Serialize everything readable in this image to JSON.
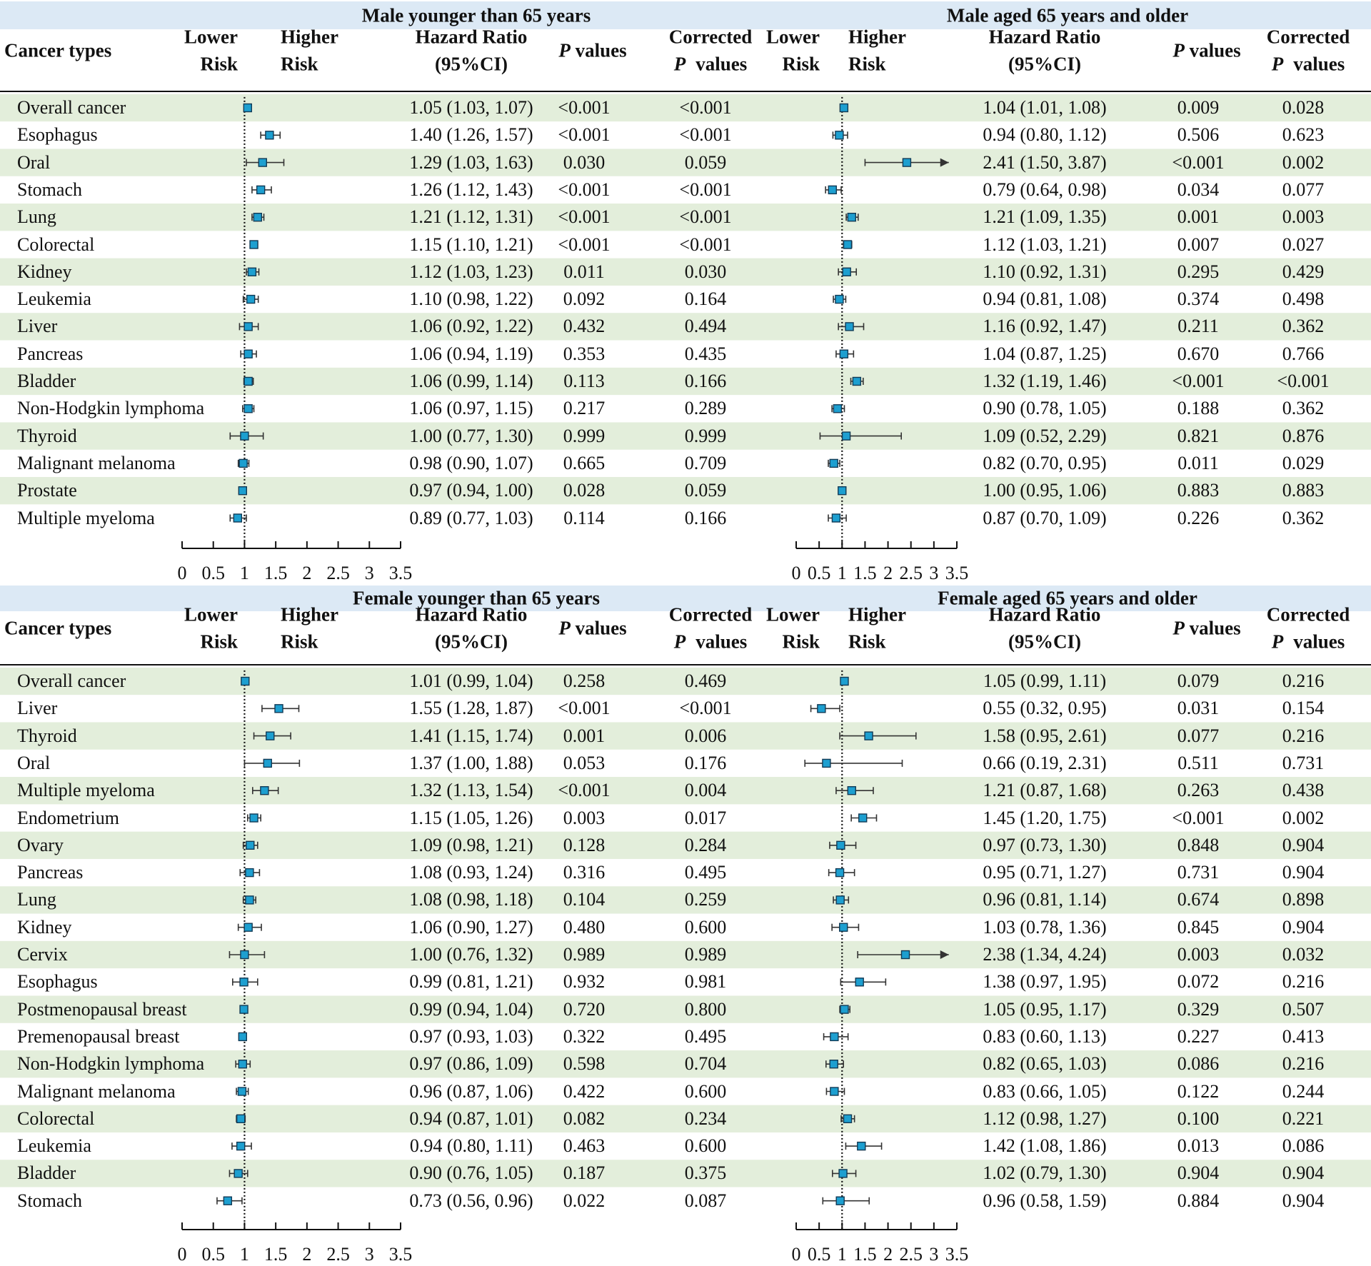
{
  "palette": {
    "title_band": "#dce9f5",
    "row_band": "#e3eedb",
    "marker": "#1d9fd0",
    "marker_edge": "#123a55"
  },
  "panels": [
    {
      "title": "Male younger than 65 years",
      "headers": {
        "cancer": "Cancer types",
        "lower_1": "Lower",
        "lower_2": "Risk",
        "higher_1": "Higher",
        "higher_2": "Risk",
        "hr_1": "Hazard Ratio",
        "hr_2": "(95%CI)",
        "p_1": "P",
        "p_2": " values",
        "cp_1": "Corrected",
        "cp_2a": "P",
        "cp_2b": "values"
      },
      "axis_ticks": [
        "0",
        "0.5",
        "1",
        "1.5",
        "2",
        "2.5",
        "3",
        "3.5"
      ]
    },
    {
      "title": "Male aged 65 years and older",
      "headers": {
        "cancer": "",
        "lower_1": "Lower",
        "lower_2": "Risk",
        "higher_1": "Higher",
        "higher_2": "Risk",
        "hr_1": "Hazard Ratio",
        "hr_2": "(95%CI)",
        "p_1": "P",
        "p_2": " values",
        "cp_1": "Corrected",
        "cp_2a": "P",
        "cp_2b": "values"
      },
      "axis_ticks": [
        "0",
        "0.5",
        "1",
        "1.5",
        "2",
        "2.5",
        "3",
        "3.5"
      ]
    },
    {
      "title": "Female younger than 65 years",
      "headers": {
        "cancer": "Cancer types",
        "lower_1": "Lower",
        "lower_2": "Risk",
        "higher_1": "Higher",
        "higher_2": "Risk",
        "hr_1": "Hazard Ratio",
        "hr_2": "(95%CI)",
        "p_1": "P",
        "p_2": " values",
        "cp_1": "Corrected",
        "cp_2a": "P",
        "cp_2b": "values"
      },
      "axis_ticks": [
        "0",
        "0.5",
        "1",
        "1.5",
        "2",
        "2.5",
        "3",
        "3.5"
      ]
    },
    {
      "title": "Female aged 65 years and older",
      "headers": {
        "cancer": "",
        "lower_1": "Lower",
        "lower_2": "Risk",
        "higher_1": "Higher",
        "higher_2": "Risk",
        "hr_1": "Hazard Ratio",
        "hr_2": "(95%CI)",
        "p_1": "P",
        "p_2": " values",
        "cp_1": "Corrected",
        "cp_2a": "P",
        "cp_2b": "values"
      },
      "axis_ticks": [
        "0",
        "0.5",
        "1",
        "1.5",
        "2",
        "2.5",
        "3",
        "3.5"
      ]
    }
  ],
  "chart_data": [
    {
      "type": "forest",
      "title": "Male younger than 65 years",
      "xlim": [
        0,
        3.5
      ],
      "reference_line": 1,
      "rows": [
        {
          "cancer": "Overall cancer",
          "hr": 1.05,
          "lo": 1.03,
          "hi": 1.07,
          "hr_text": "1.05 (1.03, 1.07)",
          "p": "<0.001",
          "p_corrected": "<0.001"
        },
        {
          "cancer": "Esophagus",
          "hr": 1.4,
          "lo": 1.26,
          "hi": 1.57,
          "hr_text": "1.40 (1.26, 1.57)",
          "p": "<0.001",
          "p_corrected": "<0.001"
        },
        {
          "cancer": "Oral",
          "hr": 1.29,
          "lo": 1.03,
          "hi": 1.63,
          "hr_text": "1.29 (1.03, 1.63)",
          "p": "0.030",
          "p_corrected": "0.059"
        },
        {
          "cancer": "Stomach",
          "hr": 1.26,
          "lo": 1.12,
          "hi": 1.43,
          "hr_text": "1.26 (1.12, 1.43)",
          "p": "<0.001",
          "p_corrected": "<0.001"
        },
        {
          "cancer": "Lung",
          "hr": 1.21,
          "lo": 1.12,
          "hi": 1.31,
          "hr_text": "1.21 (1.12, 1.31)",
          "p": "<0.001",
          "p_corrected": "<0.001"
        },
        {
          "cancer": "Colorectal",
          "hr": 1.15,
          "lo": 1.1,
          "hi": 1.21,
          "hr_text": "1.15 (1.10, 1.21)",
          "p": "<0.001",
          "p_corrected": "<0.001"
        },
        {
          "cancer": "Kidney",
          "hr": 1.12,
          "lo": 1.03,
          "hi": 1.23,
          "hr_text": "1.12 (1.03, 1.23)",
          "p": "0.011",
          "p_corrected": "0.030"
        },
        {
          "cancer": "Leukemia",
          "hr": 1.1,
          "lo": 0.98,
          "hi": 1.22,
          "hr_text": "1.10 (0.98, 1.22)",
          "p": "0.092",
          "p_corrected": "0.164"
        },
        {
          "cancer": "Liver",
          "hr": 1.06,
          "lo": 0.92,
          "hi": 1.22,
          "hr_text": "1.06 (0.92, 1.22)",
          "p": "0.432",
          "p_corrected": "0.494"
        },
        {
          "cancer": "Pancreas",
          "hr": 1.06,
          "lo": 0.94,
          "hi": 1.19,
          "hr_text": "1.06 (0.94, 1.19)",
          "p": "0.353",
          "p_corrected": "0.435"
        },
        {
          "cancer": "Bladder",
          "hr": 1.06,
          "lo": 0.99,
          "hi": 1.14,
          "hr_text": "1.06 (0.99, 1.14)",
          "p": "0.113",
          "p_corrected": "0.166"
        },
        {
          "cancer": "Non-Hodgkin lymphoma",
          "hr": 1.06,
          "lo": 0.97,
          "hi": 1.15,
          "hr_text": "1.06 (0.97, 1.15)",
          "p": "0.217",
          "p_corrected": "0.289"
        },
        {
          "cancer": "Thyroid",
          "hr": 1.0,
          "lo": 0.77,
          "hi": 1.3,
          "hr_text": "1.00 (0.77, 1.30)",
          "p": "0.999",
          "p_corrected": "0.999"
        },
        {
          "cancer": "Malignant melanoma",
          "hr": 0.98,
          "lo": 0.9,
          "hi": 1.07,
          "hr_text": "0.98 (0.90, 1.07)",
          "p": "0.665",
          "p_corrected": "0.709"
        },
        {
          "cancer": "Prostate",
          "hr": 0.97,
          "lo": 0.94,
          "hi": 1.0,
          "hr_text": "0.97 (0.94, 1.00)",
          "p": "0.028",
          "p_corrected": "0.059"
        },
        {
          "cancer": "Multiple myeloma",
          "hr": 0.89,
          "lo": 0.77,
          "hi": 1.03,
          "hr_text": "0.89 (0.77, 1.03)",
          "p": "0.114",
          "p_corrected": "0.166"
        }
      ]
    },
    {
      "type": "forest",
      "title": "Male aged 65 years and older",
      "xlim": [
        0,
        3.5
      ],
      "reference_line": 1,
      "rows": [
        {
          "cancer": "Overall cancer",
          "hr": 1.04,
          "lo": 1.01,
          "hi": 1.08,
          "hr_text": "1.04 (1.01, 1.08)",
          "p": "0.009",
          "p_corrected": "0.028"
        },
        {
          "cancer": "Esophagus",
          "hr": 0.94,
          "lo": 0.8,
          "hi": 1.12,
          "hr_text": "0.94 (0.80, 1.12)",
          "p": "0.506",
          "p_corrected": "0.623"
        },
        {
          "cancer": "Oral",
          "hr": 2.41,
          "lo": 1.5,
          "hi": 3.87,
          "hr_text": "2.41 (1.50, 3.87)",
          "p": "<0.001",
          "p_corrected": "0.002"
        },
        {
          "cancer": "Stomach",
          "hr": 0.79,
          "lo": 0.64,
          "hi": 0.98,
          "hr_text": "0.79 (0.64, 0.98)",
          "p": "0.034",
          "p_corrected": "0.077"
        },
        {
          "cancer": "Lung",
          "hr": 1.21,
          "lo": 1.09,
          "hi": 1.35,
          "hr_text": "1.21 (1.09, 1.35)",
          "p": "0.001",
          "p_corrected": "0.003"
        },
        {
          "cancer": "Colorectal",
          "hr": 1.12,
          "lo": 1.03,
          "hi": 1.21,
          "hr_text": "1.12 (1.03, 1.21)",
          "p": "0.007",
          "p_corrected": "0.027"
        },
        {
          "cancer": "Kidney",
          "hr": 1.1,
          "lo": 0.92,
          "hi": 1.31,
          "hr_text": "1.10 (0.92, 1.31)",
          "p": "0.295",
          "p_corrected": "0.429"
        },
        {
          "cancer": "Leukemia",
          "hr": 0.94,
          "lo": 0.81,
          "hi": 1.08,
          "hr_text": "0.94 (0.81, 1.08)",
          "p": "0.374",
          "p_corrected": "0.498"
        },
        {
          "cancer": "Liver",
          "hr": 1.16,
          "lo": 0.92,
          "hi": 1.47,
          "hr_text": "1.16 (0.92, 1.47)",
          "p": "0.211",
          "p_corrected": "0.362"
        },
        {
          "cancer": "Pancreas",
          "hr": 1.04,
          "lo": 0.87,
          "hi": 1.25,
          "hr_text": "1.04 (0.87, 1.25)",
          "p": "0.670",
          "p_corrected": "0.766"
        },
        {
          "cancer": "Bladder",
          "hr": 1.32,
          "lo": 1.19,
          "hi": 1.46,
          "hr_text": "1.32 (1.19, 1.46)",
          "p": "<0.001",
          "p_corrected": "<0.001"
        },
        {
          "cancer": "Non-Hodgkin lymphoma",
          "hr": 0.9,
          "lo": 0.78,
          "hi": 1.05,
          "hr_text": "0.90 (0.78, 1.05)",
          "p": "0.188",
          "p_corrected": "0.362"
        },
        {
          "cancer": "Thyroid",
          "hr": 1.09,
          "lo": 0.52,
          "hi": 2.29,
          "hr_text": "1.09 (0.52, 2.29)",
          "p": "0.821",
          "p_corrected": "0.876"
        },
        {
          "cancer": "Malignant melanoma",
          "hr": 0.82,
          "lo": 0.7,
          "hi": 0.95,
          "hr_text": "0.82 (0.70, 0.95)",
          "p": "0.011",
          "p_corrected": "0.029"
        },
        {
          "cancer": "Prostate",
          "hr": 1.0,
          "lo": 0.95,
          "hi": 1.06,
          "hr_text": "1.00 (0.95, 1.06)",
          "p": "0.883",
          "p_corrected": "0.883"
        },
        {
          "cancer": "Multiple myeloma",
          "hr": 0.87,
          "lo": 0.7,
          "hi": 1.09,
          "hr_text": "0.87 (0.70, 1.09)",
          "p": "0.226",
          "p_corrected": "0.362"
        }
      ]
    },
    {
      "type": "forest",
      "title": "Female younger than 65 years",
      "xlim": [
        0,
        3.5
      ],
      "reference_line": 1,
      "rows": [
        {
          "cancer": "Overall cancer",
          "hr": 1.01,
          "lo": 0.99,
          "hi": 1.04,
          "hr_text": "1.01 (0.99, 1.04)",
          "p": "0.258",
          "p_corrected": "0.469"
        },
        {
          "cancer": "Liver",
          "hr": 1.55,
          "lo": 1.28,
          "hi": 1.87,
          "hr_text": "1.55 (1.28, 1.87)",
          "p": "<0.001",
          "p_corrected": "<0.001"
        },
        {
          "cancer": "Thyroid",
          "hr": 1.41,
          "lo": 1.15,
          "hi": 1.74,
          "hr_text": "1.41 (1.15, 1.74)",
          "p": "0.001",
          "p_corrected": "0.006"
        },
        {
          "cancer": "Oral",
          "hr": 1.37,
          "lo": 1.0,
          "hi": 1.88,
          "hr_text": "1.37 (1.00, 1.88)",
          "p": "0.053",
          "p_corrected": "0.176"
        },
        {
          "cancer": "Multiple myeloma",
          "hr": 1.32,
          "lo": 1.13,
          "hi": 1.54,
          "hr_text": "1.32 (1.13, 1.54)",
          "p": "<0.001",
          "p_corrected": "0.004"
        },
        {
          "cancer": "Endometrium",
          "hr": 1.15,
          "lo": 1.05,
          "hi": 1.26,
          "hr_text": "1.15 (1.05, 1.26)",
          "p": "0.003",
          "p_corrected": "0.017"
        },
        {
          "cancer": "Ovary",
          "hr": 1.09,
          "lo": 0.98,
          "hi": 1.21,
          "hr_text": "1.09 (0.98, 1.21)",
          "p": "0.128",
          "p_corrected": "0.284"
        },
        {
          "cancer": "Pancreas",
          "hr": 1.08,
          "lo": 0.93,
          "hi": 1.24,
          "hr_text": "1.08 (0.93, 1.24)",
          "p": "0.316",
          "p_corrected": "0.495"
        },
        {
          "cancer": "Lung",
          "hr": 1.08,
          "lo": 0.98,
          "hi": 1.18,
          "hr_text": "1.08 (0.98, 1.18)",
          "p": "0.104",
          "p_corrected": "0.259"
        },
        {
          "cancer": "Kidney",
          "hr": 1.06,
          "lo": 0.9,
          "hi": 1.27,
          "hr_text": "1.06 (0.90, 1.27)",
          "p": "0.480",
          "p_corrected": "0.600"
        },
        {
          "cancer": "Cervix",
          "hr": 1.0,
          "lo": 0.76,
          "hi": 1.32,
          "hr_text": "1.00 (0.76, 1.32)",
          "p": "0.989",
          "p_corrected": "0.989"
        },
        {
          "cancer": "Esophagus",
          "hr": 0.99,
          "lo": 0.81,
          "hi": 1.21,
          "hr_text": "0.99 (0.81, 1.21)",
          "p": "0.932",
          "p_corrected": "0.981"
        },
        {
          "cancer": "Postmenopausal breast",
          "hr": 0.99,
          "lo": 0.94,
          "hi": 1.04,
          "hr_text": "0.99 (0.94, 1.04)",
          "p": "0.720",
          "p_corrected": "0.800"
        },
        {
          "cancer": "Premenopausal breast",
          "hr": 0.97,
          "lo": 0.93,
          "hi": 1.03,
          "hr_text": "0.97 (0.93, 1.03)",
          "p": "0.322",
          "p_corrected": "0.495"
        },
        {
          "cancer": "Non-Hodgkin lymphoma",
          "hr": 0.97,
          "lo": 0.86,
          "hi": 1.09,
          "hr_text": "0.97 (0.86, 1.09)",
          "p": "0.598",
          "p_corrected": "0.704"
        },
        {
          "cancer": "Malignant melanoma",
          "hr": 0.96,
          "lo": 0.87,
          "hi": 1.06,
          "hr_text": "0.96 (0.87, 1.06)",
          "p": "0.422",
          "p_corrected": "0.600"
        },
        {
          "cancer": "Colorectal",
          "hr": 0.94,
          "lo": 0.87,
          "hi": 1.01,
          "hr_text": "0.94 (0.87, 1.01)",
          "p": "0.082",
          "p_corrected": "0.234"
        },
        {
          "cancer": "Leukemia",
          "hr": 0.94,
          "lo": 0.8,
          "hi": 1.11,
          "hr_text": "0.94 (0.80, 1.11)",
          "p": "0.463",
          "p_corrected": "0.600"
        },
        {
          "cancer": "Bladder",
          "hr": 0.9,
          "lo": 0.76,
          "hi": 1.05,
          "hr_text": "0.90 (0.76, 1.05)",
          "p": "0.187",
          "p_corrected": "0.375"
        },
        {
          "cancer": "Stomach",
          "hr": 0.73,
          "lo": 0.56,
          "hi": 0.96,
          "hr_text": "0.73 (0.56, 0.96)",
          "p": "0.022",
          "p_corrected": "0.087"
        }
      ]
    },
    {
      "type": "forest",
      "title": "Female aged 65 years and older",
      "xlim": [
        0,
        3.5
      ],
      "reference_line": 1,
      "rows": [
        {
          "cancer": "Overall cancer",
          "hr": 1.05,
          "lo": 0.99,
          "hi": 1.11,
          "hr_text": "1.05 (0.99, 1.11)",
          "p": "0.079",
          "p_corrected": "0.216"
        },
        {
          "cancer": "Liver",
          "hr": 0.55,
          "lo": 0.32,
          "hi": 0.95,
          "hr_text": "0.55 (0.32, 0.95)",
          "p": "0.031",
          "p_corrected": "0.154"
        },
        {
          "cancer": "Thyroid",
          "hr": 1.58,
          "lo": 0.95,
          "hi": 2.61,
          "hr_text": "1.58 (0.95, 2.61)",
          "p": "0.077",
          "p_corrected": "0.216"
        },
        {
          "cancer": "Oral",
          "hr": 0.66,
          "lo": 0.19,
          "hi": 2.31,
          "hr_text": "0.66 (0.19, 2.31)",
          "p": "0.511",
          "p_corrected": "0.731"
        },
        {
          "cancer": "Multiple myeloma",
          "hr": 1.21,
          "lo": 0.87,
          "hi": 1.68,
          "hr_text": "1.21 (0.87, 1.68)",
          "p": "0.263",
          "p_corrected": "0.438"
        },
        {
          "cancer": "Endometrium",
          "hr": 1.45,
          "lo": 1.2,
          "hi": 1.75,
          "hr_text": "1.45 (1.20, 1.75)",
          "p": "<0.001",
          "p_corrected": "0.002"
        },
        {
          "cancer": "Ovary",
          "hr": 0.97,
          "lo": 0.73,
          "hi": 1.3,
          "hr_text": "0.97 (0.73, 1.30)",
          "p": "0.848",
          "p_corrected": "0.904"
        },
        {
          "cancer": "Pancreas",
          "hr": 0.95,
          "lo": 0.71,
          "hi": 1.27,
          "hr_text": "0.95 (0.71, 1.27)",
          "p": "0.731",
          "p_corrected": "0.904"
        },
        {
          "cancer": "Lung",
          "hr": 0.96,
          "lo": 0.81,
          "hi": 1.14,
          "hr_text": "0.96 (0.81, 1.14)",
          "p": "0.674",
          "p_corrected": "0.898"
        },
        {
          "cancer": "Kidney",
          "hr": 1.03,
          "lo": 0.78,
          "hi": 1.36,
          "hr_text": "1.03 (0.78, 1.36)",
          "p": "0.845",
          "p_corrected": "0.904"
        },
        {
          "cancer": "Cervix",
          "hr": 2.38,
          "lo": 1.34,
          "hi": 4.24,
          "hr_text": "2.38 (1.34, 4.24)",
          "p": "0.003",
          "p_corrected": "0.032"
        },
        {
          "cancer": "Esophagus",
          "hr": 1.38,
          "lo": 0.97,
          "hi": 1.95,
          "hr_text": "1.38 (0.97, 1.95)",
          "p": "0.072",
          "p_corrected": "0.216"
        },
        {
          "cancer": "Postmenopausal breast",
          "hr": 1.05,
          "lo": 0.95,
          "hi": 1.17,
          "hr_text": "1.05 (0.95, 1.17)",
          "p": "0.329",
          "p_corrected": "0.507"
        },
        {
          "cancer": "Premenopausal breast",
          "hr": 0.83,
          "lo": 0.6,
          "hi": 1.13,
          "hr_text": "0.83 (0.60, 1.13)",
          "p": "0.227",
          "p_corrected": "0.413"
        },
        {
          "cancer": "Non-Hodgkin lymphoma",
          "hr": 0.82,
          "lo": 0.65,
          "hi": 1.03,
          "hr_text": "0.82 (0.65, 1.03)",
          "p": "0.086",
          "p_corrected": "0.216"
        },
        {
          "cancer": "Malignant melanoma",
          "hr": 0.83,
          "lo": 0.66,
          "hi": 1.05,
          "hr_text": "0.83 (0.66, 1.05)",
          "p": "0.122",
          "p_corrected": "0.244"
        },
        {
          "cancer": "Colorectal",
          "hr": 1.12,
          "lo": 0.98,
          "hi": 1.27,
          "hr_text": "1.12 (0.98, 1.27)",
          "p": "0.100",
          "p_corrected": "0.221"
        },
        {
          "cancer": "Leukemia",
          "hr": 1.42,
          "lo": 1.08,
          "hi": 1.86,
          "hr_text": "1.42 (1.08, 1.86)",
          "p": "0.013",
          "p_corrected": "0.086"
        },
        {
          "cancer": "Bladder",
          "hr": 1.02,
          "lo": 0.79,
          "hi": 1.3,
          "hr_text": "1.02 (0.79, 1.30)",
          "p": "0.904",
          "p_corrected": "0.904"
        },
        {
          "cancer": "Stomach",
          "hr": 0.96,
          "lo": 0.58,
          "hi": 1.59,
          "hr_text": "0.96 (0.58, 1.59)",
          "p": "0.884",
          "p_corrected": "0.904"
        }
      ]
    }
  ]
}
